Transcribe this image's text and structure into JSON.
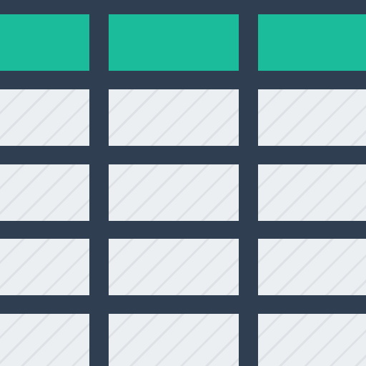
{
  "icon": {
    "name": "spreadsheet-table-icon",
    "colors": {
      "frame": "#2f3e50",
      "header": "#1abc9c",
      "cell": "#eceff1",
      "stripe": "#d2d8dd"
    },
    "columns": 3,
    "header_rows": 1,
    "body_rows": 4
  }
}
